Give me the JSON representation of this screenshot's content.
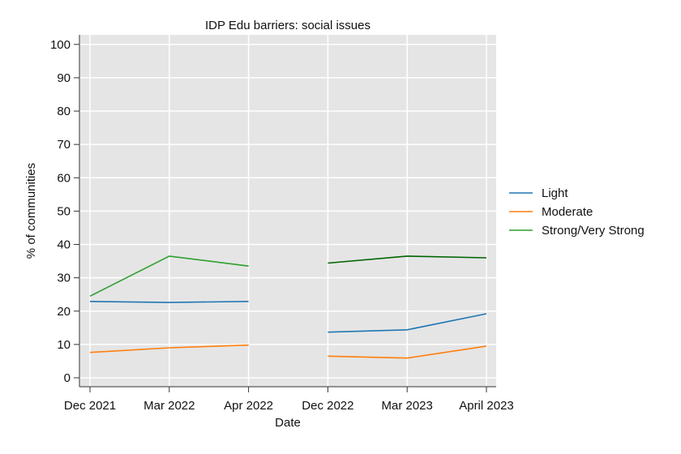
{
  "chart_data": {
    "type": "line",
    "title": "IDP Edu barriers: social issues",
    "xlabel": "Date",
    "ylabel": "% of communities",
    "ylim": [
      0,
      100
    ],
    "yticks": [
      0,
      10,
      20,
      30,
      40,
      50,
      60,
      70,
      80,
      90,
      100
    ],
    "categories": [
      "Dec 2021",
      "Mar 2022",
      "Apr 2022",
      "Dec 2022",
      "Mar 2023",
      "April 2023"
    ],
    "grid": true,
    "legend_position": "right",
    "series": [
      {
        "name": "Light",
        "color": "#1f77b4",
        "segments": [
          {
            "x": [
              "Dec 2021",
              "Mar 2022",
              "Apr 2022"
            ],
            "values": [
              22.9,
              22.6,
              22.9
            ]
          },
          {
            "x": [
              "Dec 2022",
              "Mar 2023",
              "April 2023"
            ],
            "values": [
              13.7,
              14.4,
              19.2
            ]
          }
        ]
      },
      {
        "name": "Moderate",
        "color": "#ff7f0e",
        "segments": [
          {
            "x": [
              "Dec 2021",
              "Mar 2022",
              "Apr 2022"
            ],
            "values": [
              7.6,
              9.0,
              9.8
            ]
          },
          {
            "x": [
              "Dec 2022",
              "Mar 2023",
              "April 2023"
            ],
            "values": [
              6.5,
              5.9,
              9.5
            ]
          }
        ]
      },
      {
        "name": "Strong/Very Strong",
        "color": "#2ca02c",
        "segments": [
          {
            "x": [
              "Dec 2021",
              "Mar 2022",
              "Apr 2022"
            ],
            "values": [
              24.5,
              36.5,
              33.5
            ],
            "color": "#2ca02c"
          },
          {
            "x": [
              "Dec 2022",
              "Mar 2023",
              "April 2023"
            ],
            "values": [
              34.4,
              36.5,
              36.0
            ],
            "color": "#006400"
          }
        ]
      }
    ]
  }
}
